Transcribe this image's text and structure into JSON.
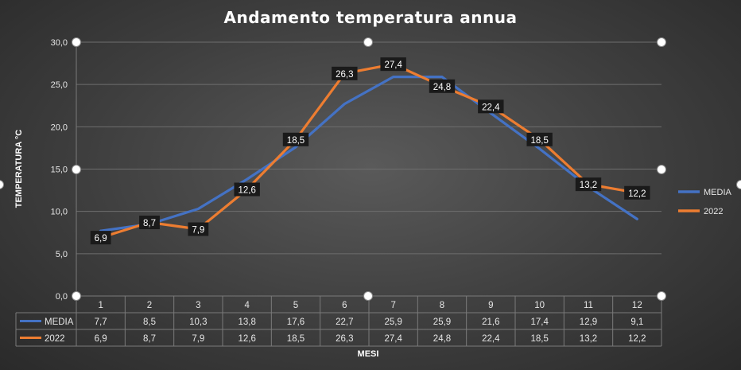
{
  "chart_data": {
    "type": "line",
    "title": "Andamento temperatura annua",
    "xlabel": "MESI",
    "ylabel": "TEMPERATURA °C",
    "categories": [
      "1",
      "2",
      "3",
      "4",
      "5",
      "6",
      "7",
      "8",
      "9",
      "10",
      "11",
      "12"
    ],
    "ylim": [
      0,
      30
    ],
    "yticks": [
      "0,0",
      "5,0",
      "10,0",
      "15,0",
      "20,0",
      "25,0",
      "30,0"
    ],
    "grid": true,
    "legend_position": "right",
    "series": [
      {
        "name": "MEDIA",
        "color": "#4472c4",
        "values": [
          7.7,
          8.5,
          10.3,
          13.8,
          17.6,
          22.7,
          25.9,
          25.9,
          21.6,
          17.4,
          12.9,
          9.1
        ],
        "labels": [
          "7,7",
          "8,5",
          "10,3",
          "13,8",
          "17,6",
          "22,7",
          "25,9",
          "25,9",
          "21,6",
          "17,4",
          "12,9",
          "9,1"
        ],
        "data_labels_shown": false
      },
      {
        "name": "2022",
        "color": "#ed7d31",
        "values": [
          6.9,
          8.7,
          7.9,
          12.6,
          18.5,
          26.3,
          27.4,
          24.8,
          22.4,
          18.5,
          13.2,
          12.2
        ],
        "labels": [
          "6,9",
          "8,7",
          "7,9",
          "12,6",
          "18,5",
          "26,3",
          "27,4",
          "24,8",
          "22,4",
          "18,5",
          "13,2",
          "12,2"
        ],
        "data_labels_shown": true
      }
    ],
    "data_table": true
  }
}
